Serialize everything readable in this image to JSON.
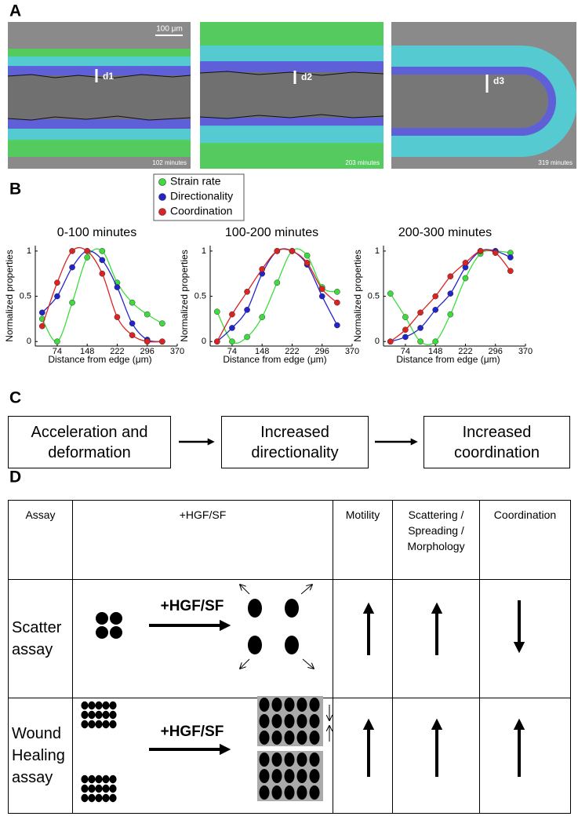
{
  "panel_a": {
    "label": "A",
    "scale_bar": "100 μm",
    "images": [
      {
        "marker": "d1",
        "time": "102 minutes"
      },
      {
        "marker": "d2",
        "time": "203 minutes"
      },
      {
        "marker": "d3",
        "time": "319 minutes"
      }
    ]
  },
  "panel_b": {
    "label": "B"
  },
  "chart_data": [
    {
      "type": "line",
      "title": "0-100 minutes",
      "x_label": "Distance from edge (μm)",
      "y_label": "Normalized properties",
      "x": [
        37,
        74,
        111,
        148,
        185,
        222,
        259,
        296,
        333
      ],
      "xlim": [
        20,
        370
      ],
      "xticks": [
        74,
        148,
        222,
        296,
        370
      ],
      "ylim": [
        -0.05,
        1.06
      ],
      "yticks": [
        0,
        0.5,
        1
      ],
      "smooth": true,
      "series": [
        {
          "name": "Strain rate",
          "color": "#3ddc3d",
          "values": [
            0.25,
            0,
            0.43,
            0.93,
            1.0,
            0.65,
            0.43,
            0.3,
            0.2
          ]
        },
        {
          "name": "Directionality",
          "color": "#2323cc",
          "values": [
            0.32,
            0.5,
            0.82,
            1.0,
            0.9,
            0.6,
            0.2,
            0.02,
            0
          ]
        },
        {
          "name": "Coordination",
          "color": "#dd2222",
          "values": [
            0.17,
            0.65,
            1.0,
            1.0,
            0.75,
            0.27,
            0.07,
            0,
            0
          ]
        }
      ]
    },
    {
      "type": "line",
      "title": "100-200 minutes",
      "x_label": "Distance from edge (μm)",
      "y_label": "Normalized properties",
      "x": [
        37,
        74,
        111,
        148,
        185,
        222,
        259,
        296,
        333
      ],
      "xlim": [
        20,
        370
      ],
      "xticks": [
        74,
        148,
        222,
        296,
        370
      ],
      "ylim": [
        -0.05,
        1.06
      ],
      "yticks": [
        0,
        0.5,
        1
      ],
      "smooth": true,
      "series": [
        {
          "color": "#3ddc3d",
          "values": [
            0.33,
            0,
            0.05,
            0.27,
            0.65,
            1.0,
            0.95,
            0.6,
            0.55
          ]
        },
        {
          "color": "#2323cc",
          "values": [
            0,
            0.15,
            0.35,
            0.75,
            1.0,
            1.0,
            0.85,
            0.5,
            0.18
          ]
        },
        {
          "color": "#dd2222",
          "values": [
            0,
            0.3,
            0.55,
            0.8,
            1.0,
            1.0,
            0.87,
            0.58,
            0.43
          ]
        }
      ]
    },
    {
      "type": "line",
      "title": "200-300 minutes",
      "x_label": "Distance from edge (μm)",
      "y_label": "Normalized properties",
      "x": [
        37,
        74,
        111,
        148,
        185,
        222,
        259,
        296,
        333
      ],
      "xlim": [
        20,
        370
      ],
      "xticks": [
        74,
        148,
        222,
        296,
        370
      ],
      "ylim": [
        -0.05,
        1.06
      ],
      "yticks": [
        0,
        0.5,
        1
      ],
      "smooth": true,
      "series": [
        {
          "color": "#3ddc3d",
          "values": [
            0.53,
            0.27,
            0,
            0,
            0.3,
            0.7,
            0.97,
            1.0,
            0.98
          ]
        },
        {
          "color": "#2323cc",
          "values": [
            0,
            0.05,
            0.15,
            0.35,
            0.53,
            0.82,
            1.0,
            1.0,
            0.93
          ]
        },
        {
          "color": "#dd2222",
          "values": [
            0,
            0.13,
            0.32,
            0.5,
            0.72,
            0.87,
            1.0,
            0.98,
            0.78
          ]
        }
      ]
    }
  ],
  "panel_c": {
    "label": "C",
    "steps": [
      "Acceleration and deformation",
      "Increased directionality",
      "Increased coordination"
    ]
  },
  "panel_d": {
    "label": "D",
    "columns": [
      "Assay",
      "+HGF/SF",
      "Motility",
      "Scattering / Spreading / Morphology",
      "Coordination"
    ],
    "rows": [
      {
        "assay": "Scatter assay",
        "treatment": "+HGF/SF"
      },
      {
        "assay": "Wound Healing assay",
        "treatment": "+HGF/SF"
      }
    ]
  }
}
